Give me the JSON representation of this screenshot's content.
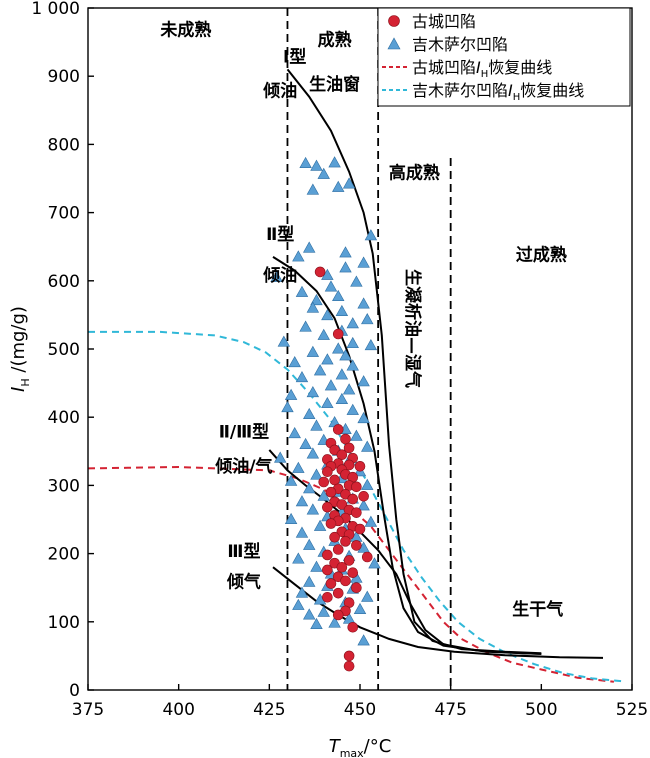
{
  "chart_data": {
    "type": "scatter",
    "xlabel_main": "T",
    "xlabel_sub": "max",
    "xlabel_unit": "/°C",
    "ylabel_main": "I",
    "ylabel_sub": "H",
    "ylabel_unit": "/(mg/g)",
    "xlim": [
      375,
      525
    ],
    "ylim": [
      0,
      1000
    ],
    "x_ticks": [
      375,
      400,
      425,
      450,
      475,
      500,
      525
    ],
    "y_ticks": [
      0,
      100,
      200,
      300,
      400,
      500,
      600,
      700,
      800,
      900,
      1000
    ],
    "y_tick_labels": [
      "0",
      "100",
      "200",
      "300",
      "400",
      "500",
      "600",
      "700",
      "800",
      "900",
      "1 000"
    ],
    "maturity_boundaries": [
      430,
      455,
      475
    ],
    "zones": [
      {
        "label": "未成熟",
        "x": 402,
        "y": 960
      },
      {
        "label": "成熟",
        "x": 443,
        "y": 945
      },
      {
        "label": "生油窗",
        "x": 443,
        "y": 880
      },
      {
        "label": "高成熟",
        "x": 465,
        "y": 750
      },
      {
        "label": "过成熟",
        "x": 500,
        "y": 630
      },
      {
        "label": "生干气",
        "x": 499,
        "y": 110
      }
    ],
    "vertical_zone_label": {
      "label": "生凝析油—湿气",
      "x": 463,
      "y": 530
    },
    "type_labels": [
      {
        "label": "Ⅰ型",
        "x": 432,
        "y": 920
      },
      {
        "label": "倾油",
        "x": 428,
        "y": 870
      },
      {
        "label": "Ⅱ型",
        "x": 428,
        "y": 660
      },
      {
        "label": "倾油",
        "x": 428,
        "y": 600
      },
      {
        "label": "Ⅱ/Ⅲ型",
        "x": 418,
        "y": 370
      },
      {
        "label": "倾油/气",
        "x": 418,
        "y": 320
      },
      {
        "label": "Ⅲ型",
        "x": 418,
        "y": 195
      },
      {
        "label": "倾气",
        "x": 418,
        "y": 150
      }
    ],
    "series": [
      {
        "name": "古城凹陷",
        "marker": "circle",
        "color": "#d42333",
        "points": [
          [
            439,
            613
          ],
          [
            444,
            522
          ],
          [
            444,
            382
          ],
          [
            446,
            368
          ],
          [
            442,
            362
          ],
          [
            447,
            355
          ],
          [
            443,
            352
          ],
          [
            445,
            345
          ],
          [
            448,
            340
          ],
          [
            441,
            338
          ],
          [
            444,
            332
          ],
          [
            447,
            330
          ],
          [
            442,
            328
          ],
          [
            450,
            328
          ],
          [
            445,
            323
          ],
          [
            441,
            320
          ],
          [
            446,
            316
          ],
          [
            448,
            312
          ],
          [
            443,
            308
          ],
          [
            440,
            305
          ],
          [
            447,
            300
          ],
          [
            449,
            298
          ],
          [
            444,
            295
          ],
          [
            442,
            290
          ],
          [
            446,
            287
          ],
          [
            451,
            284
          ],
          [
            448,
            280
          ],
          [
            443,
            276
          ],
          [
            445,
            272
          ],
          [
            441,
            268
          ],
          [
            447,
            264
          ],
          [
            449,
            260
          ],
          [
            443,
            256
          ],
          [
            446,
            252
          ],
          [
            444,
            248
          ],
          [
            442,
            244
          ],
          [
            448,
            240
          ],
          [
            450,
            236
          ],
          [
            445,
            232
          ],
          [
            447,
            228
          ],
          [
            443,
            224
          ],
          [
            446,
            218
          ],
          [
            449,
            212
          ],
          [
            444,
            206
          ],
          [
            441,
            198
          ],
          [
            452,
            195
          ],
          [
            447,
            190
          ],
          [
            443,
            186
          ],
          [
            445,
            180
          ],
          [
            441,
            176
          ],
          [
            448,
            172
          ],
          [
            444,
            166
          ],
          [
            446,
            160
          ],
          [
            442,
            156
          ],
          [
            449,
            150
          ],
          [
            444,
            142
          ],
          [
            441,
            136
          ],
          [
            447,
            128
          ],
          [
            446,
            116
          ],
          [
            444,
            110
          ],
          [
            448,
            92
          ],
          [
            447,
            50
          ],
          [
            447,
            35
          ]
        ]
      },
      {
        "name": "吉木萨尔凹陷",
        "marker": "triangle",
        "color": "#5a9fd4",
        "points": [
          [
            435,
            772
          ],
          [
            438,
            768
          ],
          [
            443,
            773
          ],
          [
            440,
            756
          ],
          [
            447,
            742
          ],
          [
            444,
            737
          ],
          [
            437,
            733
          ],
          [
            453,
            666
          ],
          [
            436,
            648
          ],
          [
            446,
            641
          ],
          [
            433,
            635
          ],
          [
            451,
            626
          ],
          [
            446,
            619
          ],
          [
            441,
            608
          ],
          [
            427,
            605
          ],
          [
            449,
            598
          ],
          [
            442,
            591
          ],
          [
            434,
            583
          ],
          [
            444,
            577
          ],
          [
            438,
            571
          ],
          [
            451,
            566
          ],
          [
            437,
            560
          ],
          [
            445,
            555
          ],
          [
            441,
            549
          ],
          [
            452,
            543
          ],
          [
            448,
            537
          ],
          [
            435,
            532
          ],
          [
            445,
            526
          ],
          [
            440,
            520
          ],
          [
            429,
            510
          ],
          [
            448,
            508
          ],
          [
            453,
            505
          ],
          [
            444,
            500
          ],
          [
            437,
            495
          ],
          [
            446,
            490
          ],
          [
            441,
            484
          ],
          [
            432,
            480
          ],
          [
            448,
            475
          ],
          [
            439,
            468
          ],
          [
            445,
            462
          ],
          [
            434,
            458
          ],
          [
            451,
            452
          ],
          [
            442,
            446
          ],
          [
            447,
            440
          ],
          [
            437,
            436
          ],
          [
            431,
            432
          ],
          [
            445,
            426
          ],
          [
            441,
            420
          ],
          [
            430,
            414
          ],
          [
            448,
            410
          ],
          [
            436,
            404
          ],
          [
            451,
            398
          ],
          [
            443,
            392
          ],
          [
            438,
            387
          ],
          [
            446,
            382
          ],
          [
            432,
            376
          ],
          [
            449,
            372
          ],
          [
            440,
            366
          ],
          [
            435,
            360
          ],
          [
            452,
            356
          ],
          [
            444,
            350
          ],
          [
            437,
            346
          ],
          [
            428,
            340
          ],
          [
            447,
            336
          ],
          [
            441,
            330
          ],
          [
            433,
            325
          ],
          [
            450,
            320
          ],
          [
            438,
            315
          ],
          [
            445,
            310
          ],
          [
            431,
            306
          ],
          [
            452,
            300
          ],
          [
            436,
            295
          ],
          [
            444,
            290
          ],
          [
            440,
            284
          ],
          [
            448,
            280
          ],
          [
            434,
            276
          ],
          [
            451,
            270
          ],
          [
            437,
            264
          ],
          [
            445,
            260
          ],
          [
            441,
            254
          ],
          [
            431,
            250
          ],
          [
            453,
            246
          ],
          [
            439,
            240
          ],
          [
            446,
            236
          ],
          [
            434,
            230
          ],
          [
            449,
            224
          ],
          [
            443,
            218
          ],
          [
            436,
            212
          ],
          [
            451,
            208
          ],
          [
            440,
            202
          ],
          [
            447,
            196
          ],
          [
            433,
            192
          ],
          [
            454,
            185
          ],
          [
            438,
            180
          ],
          [
            445,
            176
          ],
          [
            442,
            170
          ],
          [
            449,
            164
          ],
          [
            436,
            158
          ],
          [
            441,
            152
          ],
          [
            448,
            148
          ],
          [
            434,
            142
          ],
          [
            452,
            136
          ],
          [
            439,
            132
          ],
          [
            446,
            128
          ],
          [
            433,
            124
          ],
          [
            450,
            118
          ],
          [
            440,
            114
          ],
          [
            436,
            110
          ],
          [
            447,
            104
          ],
          [
            443,
            98
          ],
          [
            438,
            96
          ],
          [
            451,
            72
          ]
        ]
      }
    ],
    "curves": [
      {
        "id": "type-I",
        "points": [
          [
            430,
            910
          ],
          [
            436,
            870
          ],
          [
            442,
            820
          ],
          [
            447,
            760
          ],
          [
            451,
            700
          ],
          [
            453.5,
            640
          ],
          [
            456,
            520
          ],
          [
            458,
            360
          ],
          [
            460,
            250
          ],
          [
            462,
            170
          ],
          [
            465,
            100
          ],
          [
            470,
            72
          ],
          [
            478,
            60
          ],
          [
            490,
            56
          ],
          [
            500,
            54
          ]
        ]
      },
      {
        "id": "type-II",
        "points": [
          [
            426,
            635
          ],
          [
            432,
            615
          ],
          [
            438,
            585
          ],
          [
            443,
            545
          ],
          [
            447,
            490
          ],
          [
            451,
            420
          ],
          [
            454,
            350
          ],
          [
            456.5,
            260
          ],
          [
            459,
            180
          ],
          [
            462,
            120
          ],
          [
            466,
            85
          ],
          [
            473,
            65
          ],
          [
            485,
            56
          ],
          [
            500,
            53
          ]
        ]
      },
      {
        "id": "type-II-III",
        "points": [
          [
            425,
            352
          ],
          [
            430,
            322
          ],
          [
            435,
            300
          ],
          [
            440,
            280
          ],
          [
            445,
            258
          ],
          [
            450,
            232
          ],
          [
            455,
            205
          ],
          [
            460,
            170
          ],
          [
            464,
            125
          ],
          [
            468,
            88
          ],
          [
            473,
            67
          ],
          [
            482,
            58
          ],
          [
            495,
            54
          ],
          [
            500,
            53
          ]
        ]
      },
      {
        "id": "type-III",
        "points": [
          [
            426,
            180
          ],
          [
            432,
            155
          ],
          [
            438,
            130
          ],
          [
            444,
            110
          ],
          [
            450,
            92
          ],
          [
            458,
            75
          ],
          [
            466,
            63
          ],
          [
            476,
            56
          ],
          [
            490,
            51
          ],
          [
            505,
            48
          ],
          [
            517,
            47
          ]
        ]
      }
    ],
    "recovery_curves": [
      {
        "name": "古城凹陷I_H恢复曲线",
        "color": "#d42333",
        "points": [
          [
            375,
            325
          ],
          [
            400,
            327
          ],
          [
            425,
            322
          ],
          [
            433,
            310
          ],
          [
            440,
            294
          ],
          [
            447,
            268
          ],
          [
            453,
            240
          ],
          [
            458,
            205
          ],
          [
            463,
            170
          ],
          [
            468,
            135
          ],
          [
            473,
            100
          ],
          [
            478,
            75
          ],
          [
            485,
            55
          ],
          [
            492,
            40
          ],
          [
            500,
            30
          ],
          [
            510,
            18
          ],
          [
            520,
            12
          ]
        ]
      },
      {
        "name": "吉木萨尔凹陷I_H恢复曲线",
        "color": "#30b8d8",
        "points": [
          [
            375,
            525
          ],
          [
            395,
            525
          ],
          [
            410,
            520
          ],
          [
            418,
            510
          ],
          [
            424,
            495
          ],
          [
            430,
            470
          ],
          [
            436,
            435
          ],
          [
            442,
            395
          ],
          [
            447,
            350
          ],
          [
            452,
            305
          ],
          [
            457,
            255
          ],
          [
            462,
            205
          ],
          [
            467,
            165
          ],
          [
            472,
            130
          ],
          [
            477,
            100
          ],
          [
            483,
            75
          ],
          [
            490,
            55
          ],
          [
            498,
            38
          ],
          [
            506,
            25
          ],
          [
            514,
            17
          ],
          [
            522,
            13
          ]
        ]
      }
    ],
    "legend": [
      {
        "label": "古城凹陷",
        "marker": "circle",
        "color": "#d42333"
      },
      {
        "label": "吉木萨尔凹陷",
        "marker": "triangle",
        "color": "#5a9fd4"
      },
      {
        "label_main": "古城凹陷",
        "label_var": "I",
        "label_sub": "H",
        "label_tail": "恢复曲线",
        "marker": "dashed",
        "color": "#d42333"
      },
      {
        "label_main": "吉木萨尔凹陷",
        "label_var": "I",
        "label_sub": "H",
        "label_tail": "恢复曲线",
        "marker": "dashed",
        "color": "#30b8d8"
      }
    ],
    "legend_position": "top-right",
    "grid": false
  }
}
